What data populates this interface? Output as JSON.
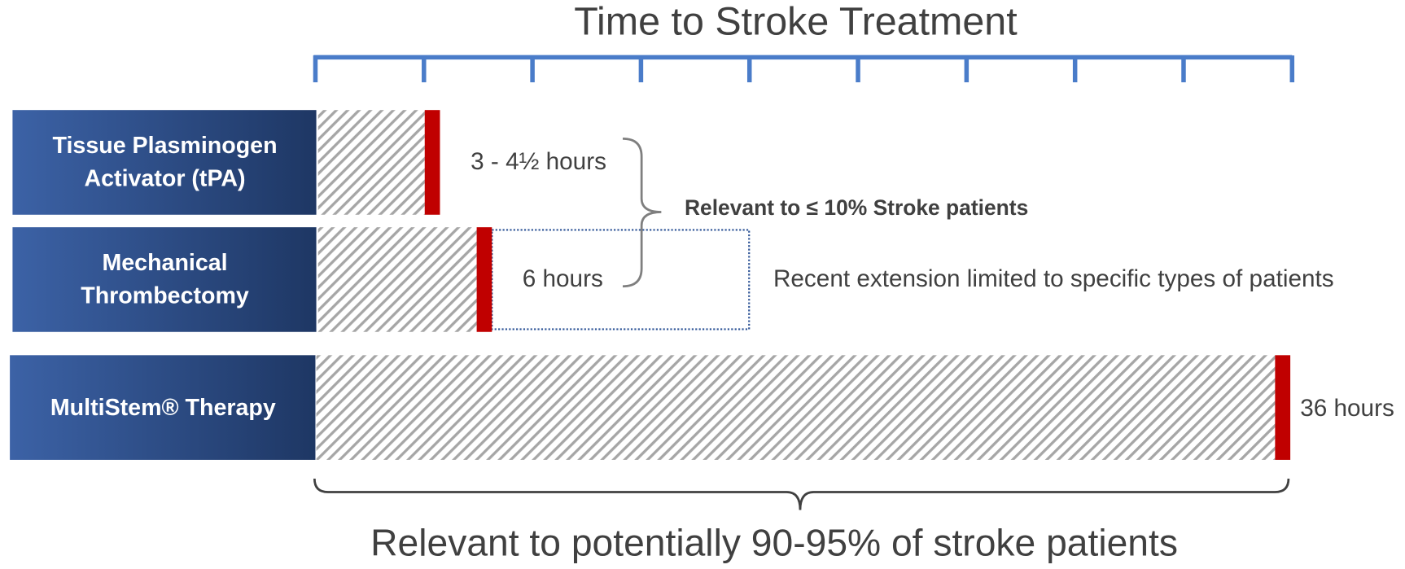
{
  "title": "Time to Stroke Treatment",
  "rows": [
    {
      "label": [
        "Tissue Plasminogen",
        "Activator (tPA)"
      ],
      "duration": "3 - 4½ hours"
    },
    {
      "label": [
        "Mechanical",
        "Thrombectomy"
      ],
      "duration": "6 hours",
      "note": "Recent extension limited to specific types of patients"
    },
    {
      "label": [
        "MultiStem® Therapy"
      ],
      "duration": "36 hours"
    }
  ],
  "bracket_note": "Relevant to ≤ 10% Stroke patients",
  "footer": "Relevant to potentially 90-95% of stroke patients"
}
